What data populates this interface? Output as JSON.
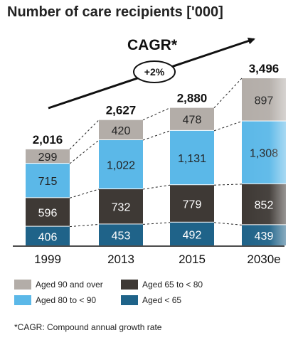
{
  "title": "Number of care recipients ['000]",
  "cagr": {
    "label": "CAGR*",
    "value": "+2%"
  },
  "footnote": "*CAGR: Compound annual growth rate",
  "colors": {
    "aged_90_plus": "#b3ada8",
    "aged_80_90": "#5bb8e8",
    "aged_65_80": "#3e3935",
    "aged_under_65": "#1f6389"
  },
  "chart_data": {
    "type": "bar",
    "stacked": true,
    "categories": [
      "1999",
      "2013",
      "2015",
      "2030e"
    ],
    "series": [
      {
        "name": "Aged < 65",
        "key": "aged_under_65",
        "values": [
          406,
          453,
          492,
          439
        ]
      },
      {
        "name": "Aged 65 to < 80",
        "key": "aged_65_80",
        "values": [
          596,
          732,
          779,
          852
        ]
      },
      {
        "name": "Aged 80 to < 90",
        "key": "aged_80_90",
        "values": [
          715,
          1022,
          1131,
          1308
        ]
      },
      {
        "name": "Aged 90 and over",
        "key": "aged_90_plus",
        "values": [
          299,
          420,
          478,
          897
        ]
      }
    ],
    "totals": [
      "2,016",
      "2,627",
      "2,880",
      "3,496"
    ],
    "segment_labels": [
      [
        "406",
        "596",
        "715",
        "299"
      ],
      [
        "453",
        "732",
        "1,022",
        "420"
      ],
      [
        "492",
        "779",
        "1,131",
        "478"
      ],
      [
        "439",
        "852",
        "1,308",
        "897"
      ]
    ],
    "legend": [
      {
        "label": "Aged 90 and over",
        "key": "aged_90_plus"
      },
      {
        "label": "Aged 65 to < 80",
        "key": "aged_65_80"
      },
      {
        "label": "Aged 80 to < 90",
        "key": "aged_80_90"
      },
      {
        "label": "Aged < 65",
        "key": "aged_under_65"
      }
    ],
    "legend_placement": "bottom",
    "projection_faded": true
  }
}
